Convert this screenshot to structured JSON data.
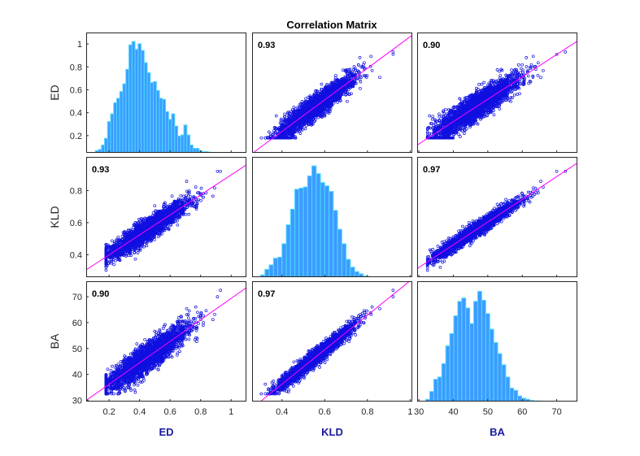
{
  "chart_data": {
    "type": "scatter-matrix",
    "title": "Correlation Matrix",
    "variables": [
      "ED",
      "KLD",
      "BA"
    ],
    "colors": {
      "points": "#1010e0",
      "fit_line": "#ff00ff",
      "hist_fill": "#3d9bff",
      "hist_edge": "#4dd9ff",
      "axis_label": "#1a1aa0"
    },
    "ranges": {
      "ED": [
        0.05,
        1.1
      ],
      "KLD": [
        0.26,
        1.01
      ],
      "BA": [
        29.5,
        76
      ]
    },
    "ticks": {
      "ED": {
        "values": [
          0.2,
          0.4,
          0.6,
          0.8,
          1
        ],
        "labels": [
          "0.2",
          "0.4",
          "0.6",
          "0.8",
          "1"
        ]
      },
      "KLD": {
        "values": [
          0.4,
          0.6,
          0.8,
          1
        ],
        "labels": [
          "0.4",
          "0.6",
          "0.8",
          "1"
        ]
      },
      "BA": {
        "values": [
          30,
          40,
          50,
          60,
          70
        ],
        "labels": [
          "30",
          "40",
          "50",
          "60",
          "70"
        ]
      }
    },
    "y_axis_ticks": {
      "ED": {
        "values": [
          0.2,
          0.4,
          0.6,
          0.8,
          1
        ],
        "labels": [
          "0.2",
          "0.4",
          "0.6",
          "0.8",
          "1"
        ]
      },
      "KLD": {
        "values": [
          0.4,
          0.6,
          0.8
        ],
        "labels": [
          "0.4",
          "0.6",
          "0.8"
        ]
      },
      "BA": {
        "values": [
          30,
          40,
          50,
          60,
          70
        ],
        "labels": [
          "30",
          "40",
          "50",
          "60",
          "70"
        ]
      }
    },
    "correlations": [
      {
        "row": "ED",
        "col": "KLD",
        "label": "0.93"
      },
      {
        "row": "ED",
        "col": "BA",
        "label": "0.90"
      },
      {
        "row": "KLD",
        "col": "ED",
        "label": "0.93"
      },
      {
        "row": "KLD",
        "col": "BA",
        "label": "0.97"
      },
      {
        "row": "BA",
        "col": "ED",
        "label": "0.90"
      },
      {
        "row": "BA",
        "col": "KLD",
        "label": "0.97"
      }
    ],
    "histograms": {
      "ED": {
        "bin_edges_start": 0.11,
        "bin_width": 0.02,
        "heights": [
          0.02,
          0.03,
          0.07,
          0.13,
          0.28,
          0.35,
          0.45,
          0.49,
          0.55,
          0.62,
          0.75,
          0.97,
          1.0,
          0.93,
          0.98,
          0.92,
          0.81,
          0.72,
          0.63,
          0.64,
          0.56,
          0.49,
          0.48,
          0.37,
          0.3,
          0.35,
          0.24,
          0.15,
          0.16,
          0.25,
          0.16,
          0.07,
          0.04,
          0.04,
          0.02,
          0.01,
          0.01,
          0.005
        ]
      },
      "KLD": {
        "bin_edges_start": 0.3,
        "bin_width": 0.02,
        "heights": [
          0.02,
          0.07,
          0.11,
          0.17,
          0.18,
          0.3,
          0.47,
          0.61,
          0.79,
          0.8,
          0.81,
          0.91,
          1.0,
          0.93,
          0.85,
          0.82,
          0.77,
          0.6,
          0.43,
          0.3,
          0.16,
          0.09,
          0.05,
          0.03,
          0.01,
          0.005
        ]
      },
      "BA": {
        "bin_edges_start": 32.0,
        "bin_width": 1.16,
        "heights": [
          0.02,
          0.09,
          0.2,
          0.22,
          0.34,
          0.5,
          0.61,
          0.77,
          0.9,
          0.93,
          0.84,
          0.7,
          0.9,
          0.99,
          0.91,
          0.79,
          0.65,
          0.53,
          0.43,
          0.33,
          0.22,
          0.12,
          0.1,
          0.05,
          0.03,
          0.02,
          0.01,
          0.005,
          0.005
        ]
      }
    },
    "xlabels": [
      "ED",
      "KLD",
      "BA"
    ],
    "ylabels": [
      "ED",
      "KLD",
      "BA"
    ]
  }
}
